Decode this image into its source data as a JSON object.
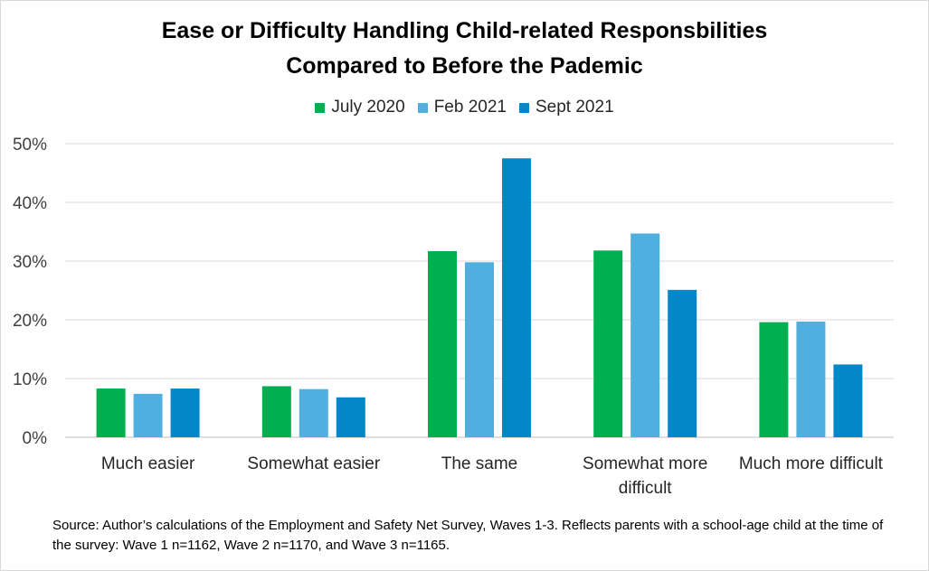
{
  "chart_data": {
    "type": "bar",
    "title": "Ease or Difficulty Handling Child-related Responsbilities Compared to Before the Pademic",
    "title_lines": [
      "Ease or Difficulty Handling Child-related Responsbilities",
      "Compared to Before the Pademic"
    ],
    "categories": [
      "Much easier",
      "Somewhat easier",
      "The same",
      "Somewhat more difficult",
      "Much more difficult"
    ],
    "category_lines": [
      [
        "Much easier"
      ],
      [
        "Somewhat easier"
      ],
      [
        "The same"
      ],
      [
        "Somewhat more",
        "difficult"
      ],
      [
        "Much more difficult"
      ]
    ],
    "series": [
      {
        "name": "July 2020",
        "color": "#00b050",
        "values": [
          8.3,
          8.7,
          31.7,
          31.8,
          19.6
        ]
      },
      {
        "name": "Feb 2021",
        "color": "#4fb0e0",
        "values": [
          7.4,
          8.2,
          29.8,
          34.7,
          19.7
        ]
      },
      {
        "name": "Sept 2021",
        "color": "#0287ca",
        "values": [
          8.3,
          6.8,
          47.5,
          25.1,
          12.4
        ]
      }
    ],
    "yticks": [
      "0%",
      "10%",
      "20%",
      "30%",
      "40%",
      "50%"
    ],
    "ylim": [
      0,
      50
    ],
    "xlabel": "",
    "ylabel": "",
    "grid": true,
    "legend_position": "top"
  },
  "source_note": "Source: Author’s calculations of the Employment and Safety Net Survey, Waves 1-3. Reflects parents with a school-age child at the time of the survey: Wave 1 n=1162, Wave 2 n=1170, and Wave 3 n=1165."
}
